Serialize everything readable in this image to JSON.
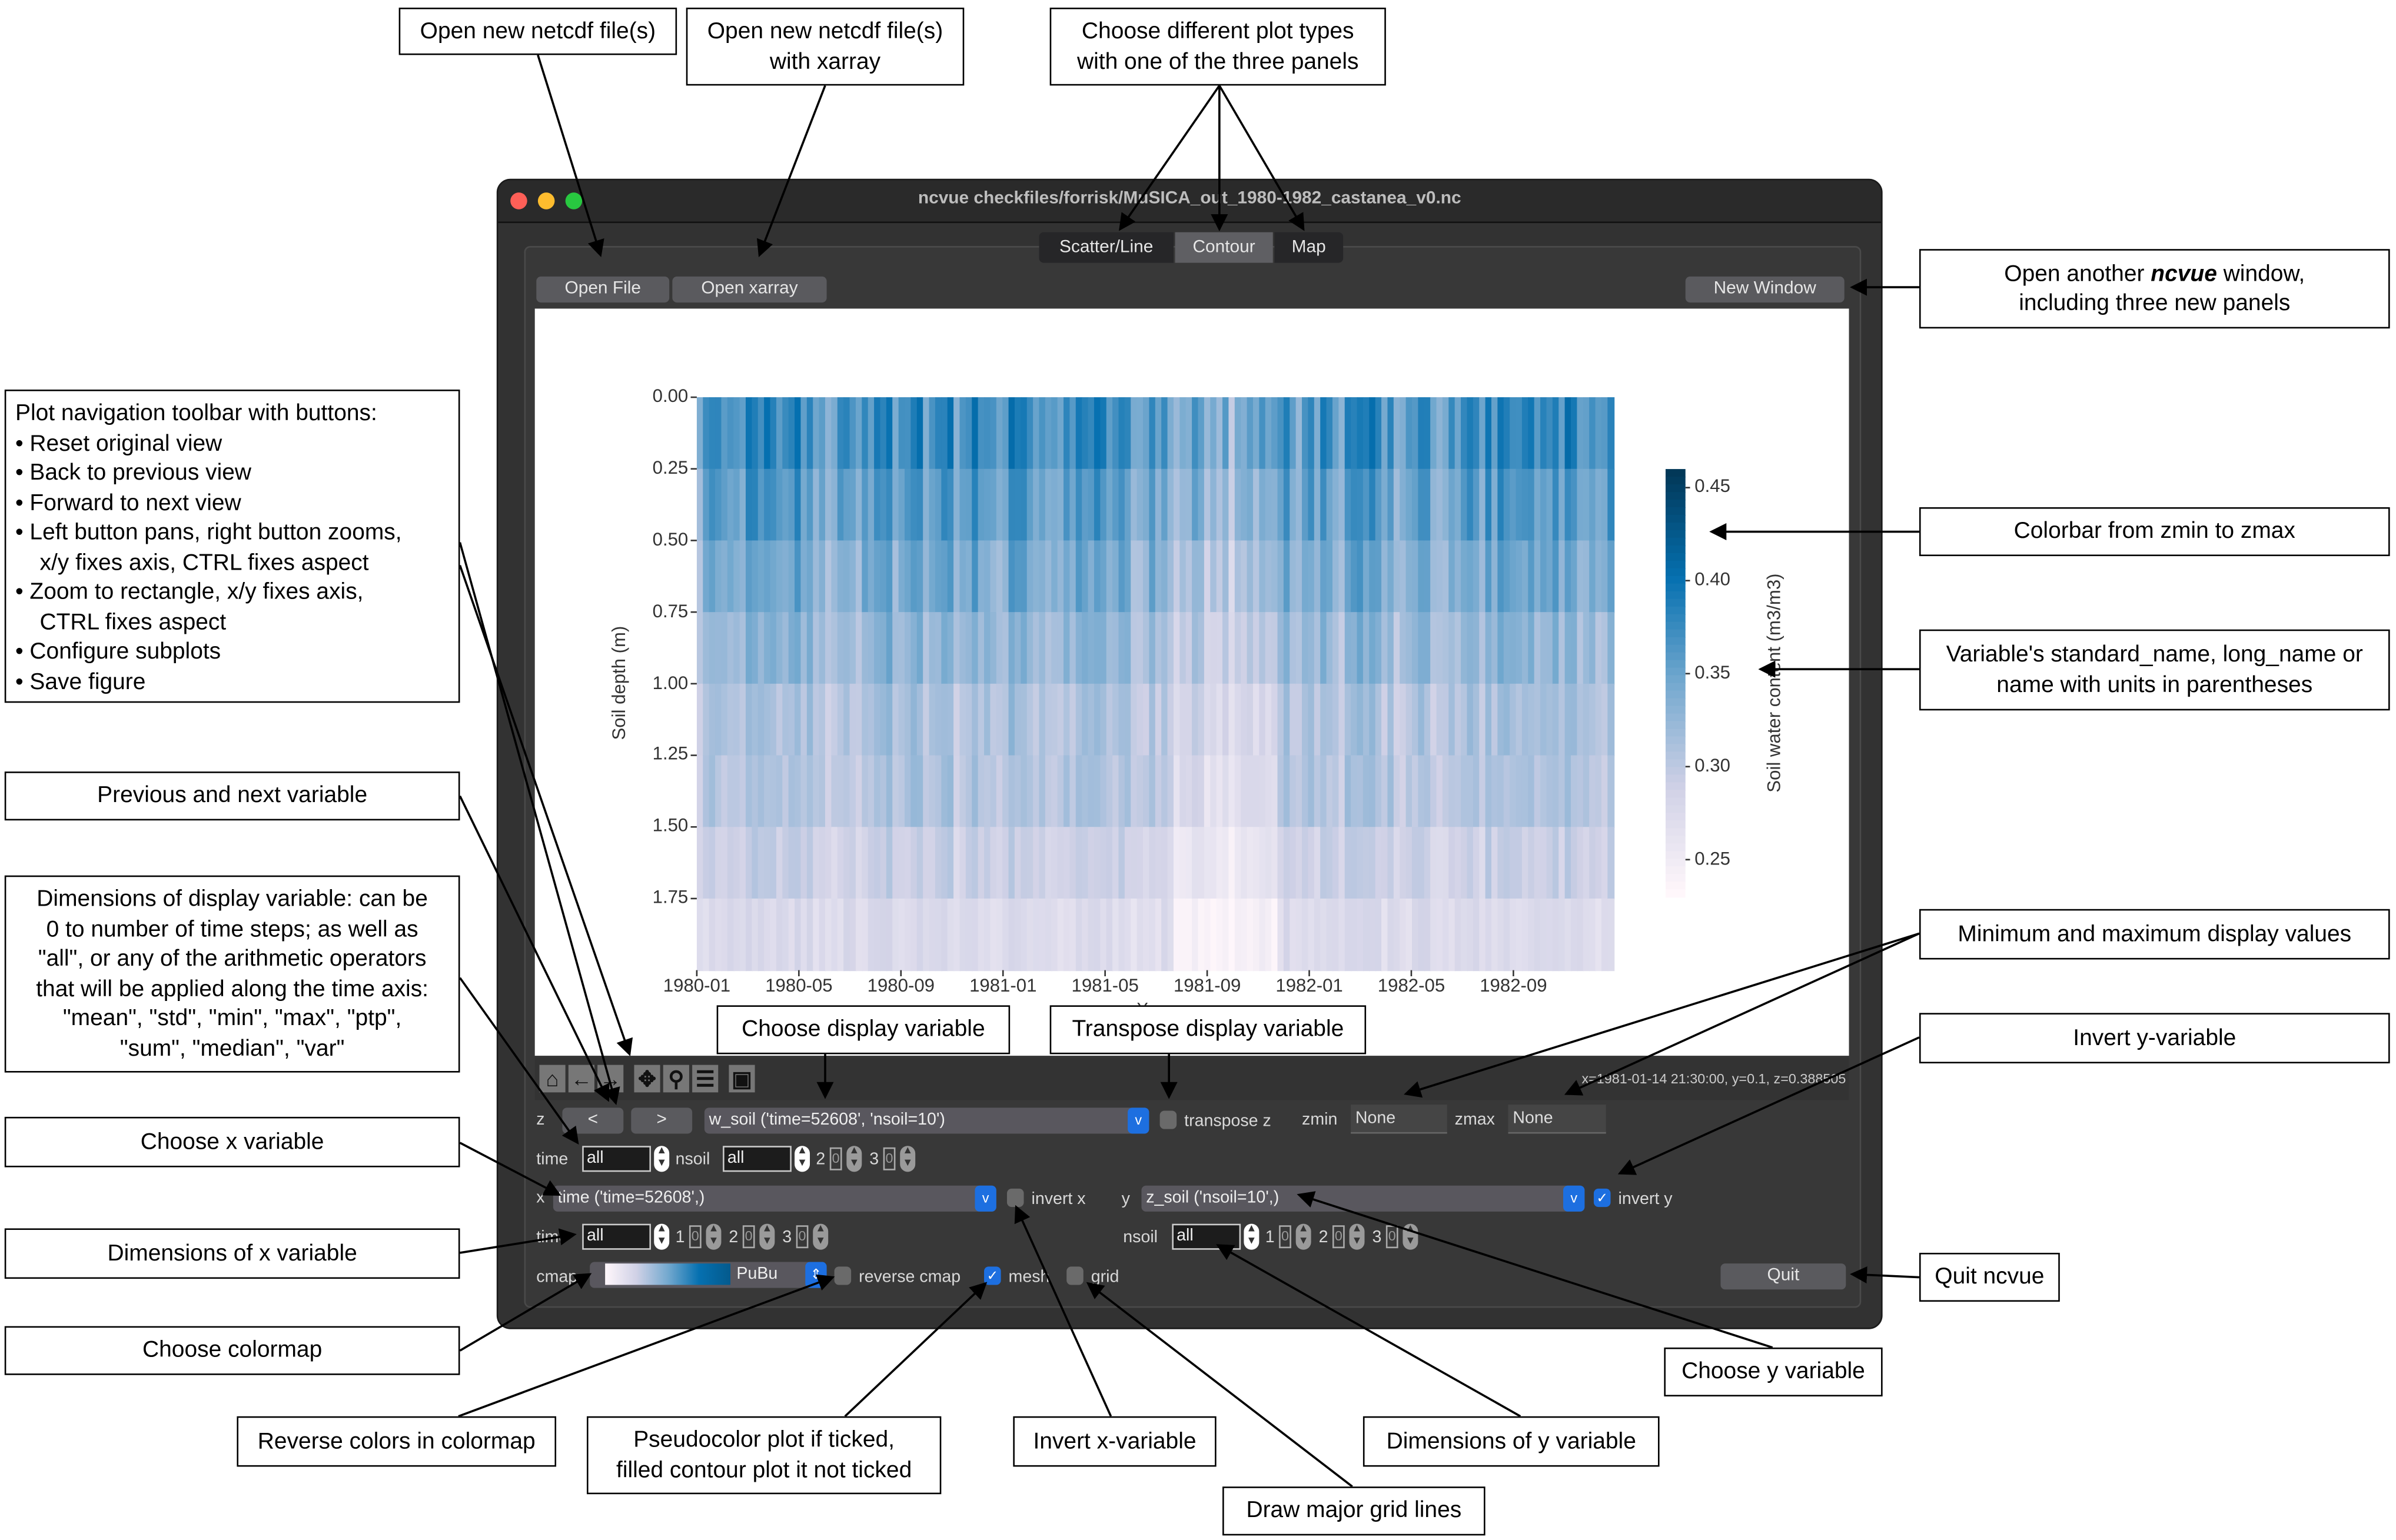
{
  "window": {
    "title": "ncvue checkfiles/forrisk/MuSICA_out_1980-1982_castanea_v0.nc",
    "traffic_colors": [
      "#fe5f57",
      "#febc2e",
      "#28c840"
    ]
  },
  "tabs": [
    {
      "label": "Scatter/Line",
      "active": false
    },
    {
      "label": "Contour",
      "active": true
    },
    {
      "label": "Map",
      "active": false
    }
  ],
  "buttons": {
    "open_file": "Open File",
    "open_xarray": "Open xarray",
    "new_window": "New Window",
    "quit": "Quit",
    "prev": "<",
    "next": ">"
  },
  "toolbar": {
    "icons": [
      "home-icon",
      "back-arrow-icon",
      "forward-arrow-icon",
      "pan-icon",
      "zoom-icon",
      "configure-subplots-icon",
      "save-icon"
    ],
    "status": "x=1981-01-14 21:30:00, y=0.1, z=0.388505"
  },
  "controls": {
    "z_label": "z",
    "z_variable": "w_soil ('time=52608', 'nsoil=10')",
    "transpose_label": "transpose z",
    "transpose_checked": false,
    "zmin_label": "zmin",
    "zmin": "None",
    "zmax_label": "zmax",
    "zmax": "None",
    "z_dims": [
      {
        "label": "time",
        "value": "all"
      },
      {
        "label": "nsoil",
        "value": "all"
      }
    ],
    "z_extra": [
      "2",
      "0",
      "3",
      "0"
    ],
    "x_label": "x",
    "x_variable": "time ('time=52608',)",
    "invert_x_label": "invert x",
    "invert_x": false,
    "y_label": "y",
    "y_variable": "z_soil ('nsoil=10',)",
    "invert_y_label": "invert y",
    "invert_y": true,
    "x_dims": {
      "label": "time",
      "value": "all",
      "extra": [
        "1",
        "0",
        "2",
        "0",
        "3",
        "0"
      ]
    },
    "y_dims": {
      "label": "nsoil",
      "value": "all",
      "extra": [
        "1",
        "0",
        "2",
        "0",
        "3",
        "0"
      ]
    },
    "cmap_label": "cmap",
    "cmap": "PuBu",
    "reverse_label": "reverse cmap",
    "reverse": false,
    "mesh_label": "mesh",
    "mesh": true,
    "grid_label": "grid",
    "grid": false
  },
  "chart_data": {
    "type": "heatmap",
    "xlabel": "Year",
    "ylabel": "Soil depth (m)",
    "colorbar_label": "Soil water content (m3/m3)",
    "x_ticks": [
      "1980-01",
      "1980-05",
      "1980-09",
      "1981-01",
      "1981-05",
      "1981-09",
      "1982-01",
      "1982-05",
      "1982-09"
    ],
    "xlim": [
      "1980-01",
      "1983-01"
    ],
    "y_ticks": [
      "0.00",
      "0.25",
      "0.50",
      "0.75",
      "1.00",
      "1.25",
      "1.50",
      "1.75"
    ],
    "ylim": [
      2.0,
      0.0
    ],
    "y_inverted": true,
    "colorbar_ticks": [
      "0.45",
      "0.40",
      "0.35",
      "0.30",
      "0.25"
    ],
    "zlim": [
      0.23,
      0.46
    ],
    "colormap": "PuBu",
    "colormap_colors": [
      "#fff7fb",
      "#d0d1e6",
      "#74a9cf",
      "#0570b0",
      "#023858"
    ]
  },
  "annotations": {
    "a1": "Open new netcdf file(s)",
    "a2": "Open new netcdf file(s)\nwith xarray",
    "a3": "Choose different plot types\nwith one of the three panels",
    "a4_pre": "Open another ",
    "a4_em": "ncvue",
    "a4_post": " window,\nincluding three new panels",
    "toolbar_title": "Plot navigation toolbar with buttons:",
    "toolbar_items": [
      "Reset original view",
      "Back to previous view",
      "Forward to next view",
      "Left button pans, right button zooms,\nx/y fixes axis, CTRL fixes aspect",
      "Zoom to rectangle, x/y fixes axis,\nCTRL fixes aspect",
      "Configure subplots",
      "Save figure"
    ],
    "prevnext": "Previous and next variable",
    "dims": "Dimensions of display variable: can be\n0 to number of time steps; as well as\n\"all\", or any of the arithmetic operators\nthat will be applied along the time axis:\n\"mean\", \"std\", \"min\", \"max\", \"ptp\",\n\"sum\", \"median\", \"var\"",
    "choosex": "Choose x variable",
    "dimsx": "Dimensions of x variable",
    "cmap": "Choose colormap",
    "reverse": "Reverse colors in colormap",
    "mesh": "Pseudocolor plot if ticked,\nfilled contour plot it not ticked",
    "invertx": "Invert x-variable",
    "grid": "Draw major grid lines",
    "dimsy": "Dimensions of y variable",
    "choosey": "Choose y variable",
    "quit": "Quit ncvue",
    "inverty": "Invert y-variable",
    "minmax": "Minimum and maximum display values",
    "colorbar": "Colorbar from zmin to zmax",
    "varname": "Variable's standard_name, long_name or\nname with units in parentheses",
    "choosez": "Choose display variable",
    "transpose": "Transpose display variable"
  }
}
